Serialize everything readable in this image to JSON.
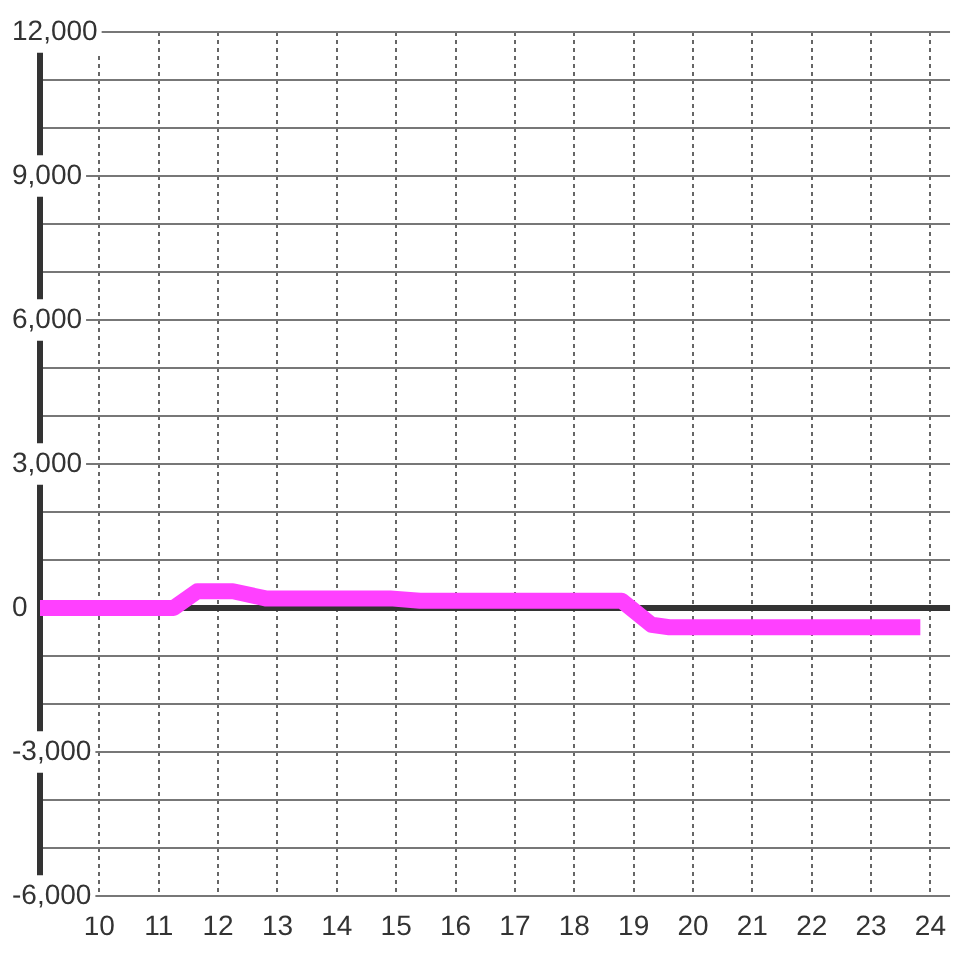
{
  "chart_data": {
    "type": "line",
    "x": [
      9,
      11.25,
      11.65,
      12.25,
      12.8,
      14.9,
      15.4,
      18.8,
      19.3,
      19.6,
      23.83
    ],
    "series": [
      {
        "color": "#ff40ff",
        "values": [
          0,
          0,
          350,
          350,
          200,
          200,
          150,
          150,
          -350,
          -400,
          -400
        ]
      }
    ],
    "xlim": [
      9,
      24.33
    ],
    "xticks": [
      10,
      11,
      12,
      13,
      14,
      15,
      16,
      17,
      18,
      19,
      20,
      21,
      22,
      23,
      24
    ],
    "ylim": [
      -6000,
      12000
    ],
    "yticks": [
      {
        "value": -6000,
        "label": "-6,000"
      },
      {
        "value": -5000,
        "label": null
      },
      {
        "value": -4000,
        "label": null
      },
      {
        "value": -3000,
        "label": "-3,000"
      },
      {
        "value": -2000,
        "label": null
      },
      {
        "value": -1000,
        "label": null
      },
      {
        "value": 0,
        "label": "0"
      },
      {
        "value": 1000,
        "label": null
      },
      {
        "value": 2000,
        "label": null
      },
      {
        "value": 3000,
        "label": "3,000"
      },
      {
        "value": 4000,
        "label": null
      },
      {
        "value": 5000,
        "label": null
      },
      {
        "value": 6000,
        "label": "6,000"
      },
      {
        "value": 7000,
        "label": null
      },
      {
        "value": 8000,
        "label": null
      },
      {
        "value": 9000,
        "label": "9,000"
      },
      {
        "value": 10000,
        "label": null
      },
      {
        "value": 11000,
        "label": null
      },
      {
        "value": 12000,
        "label": "12,000"
      }
    ],
    "grid": true,
    "legend": false,
    "marker": "none",
    "line_style": "solid",
    "ref_lines": [
      {
        "axis": "y",
        "value": 0,
        "color": "#333333"
      }
    ]
  }
}
